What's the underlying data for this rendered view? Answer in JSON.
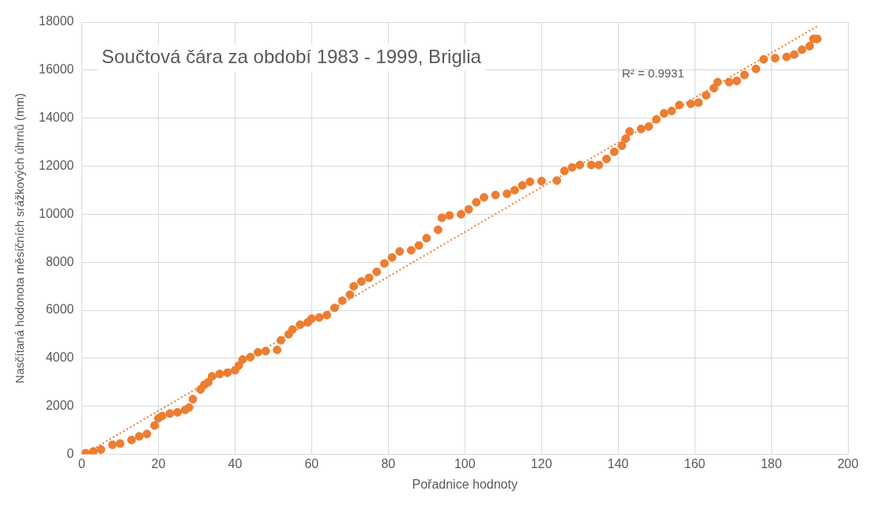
{
  "chart_data": {
    "type": "scatter",
    "title": "Součtová čára za období 1983 - 1999, Briglia",
    "xlabel": "Pořadnice hodnoty",
    "ylabel": "Nasčítaná hodonota měsíčních srážkových úhrnů (mm)",
    "xlim": [
      0,
      200
    ],
    "xticks": [
      0,
      20,
      40,
      60,
      80,
      100,
      120,
      140,
      160,
      180,
      200
    ],
    "ylim": [
      0,
      18000
    ],
    "yticks": [
      0,
      2000,
      4000,
      6000,
      8000,
      10000,
      12000,
      14000,
      16000,
      18000
    ],
    "grid": true,
    "legend": false,
    "marker": "circle",
    "annotations": [
      "R² = 0.9931"
    ],
    "series": [
      {
        "type": "scatter",
        "color": "#ed7d31",
        "x": [
          1,
          3,
          5,
          8,
          10,
          13,
          15,
          17,
          19,
          20,
          21,
          23,
          25,
          27,
          28,
          29,
          31,
          32,
          33,
          34,
          36,
          38,
          40,
          41,
          42,
          44,
          46,
          48,
          51,
          52,
          54,
          55,
          57,
          59,
          60,
          62,
          64,
          66,
          68,
          70,
          71,
          73,
          75,
          77,
          79,
          81,
          83,
          86,
          88,
          90,
          93,
          94,
          96,
          99,
          101,
          103,
          105,
          108,
          111,
          113,
          115,
          117,
          120,
          124,
          126,
          128,
          130,
          133,
          135,
          137,
          139,
          141,
          142,
          143,
          146,
          148,
          150,
          152,
          154,
          156,
          159,
          161,
          163,
          165,
          166,
          169,
          171,
          173,
          176,
          178,
          181,
          184,
          186,
          188,
          190,
          191,
          192
        ],
        "values": [
          50,
          120,
          200,
          400,
          450,
          600,
          750,
          850,
          1200,
          1500,
          1600,
          1700,
          1750,
          1850,
          1950,
          2300,
          2700,
          2900,
          3000,
          3250,
          3350,
          3400,
          3500,
          3700,
          3950,
          4050,
          4250,
          4300,
          4350,
          4750,
          5000,
          5200,
          5400,
          5500,
          5650,
          5700,
          5800,
          6100,
          6400,
          6650,
          7000,
          7200,
          7350,
          7600,
          7950,
          8200,
          8450,
          8500,
          8700,
          9000,
          9350,
          9850,
          9950,
          10000,
          10200,
          10500,
          10700,
          10800,
          10850,
          11000,
          11200,
          11350,
          11380,
          11400,
          11800,
          11950,
          12050,
          12050,
          12050,
          12300,
          12600,
          12850,
          13150,
          13450,
          13550,
          13650,
          13950,
          14200,
          14300,
          14550,
          14600,
          14650,
          14950,
          15250,
          15500,
          15500,
          15550,
          15800,
          16050,
          16450,
          16500,
          16550,
          16650,
          16850,
          17000,
          17300,
          17300
        ]
      },
      {
        "type": "line",
        "color": "#ed7d31",
        "line_style": "dotted",
        "marker": "none",
        "x": [
          1,
          192
        ],
        "values": [
          40,
          17830
        ]
      }
    ]
  }
}
